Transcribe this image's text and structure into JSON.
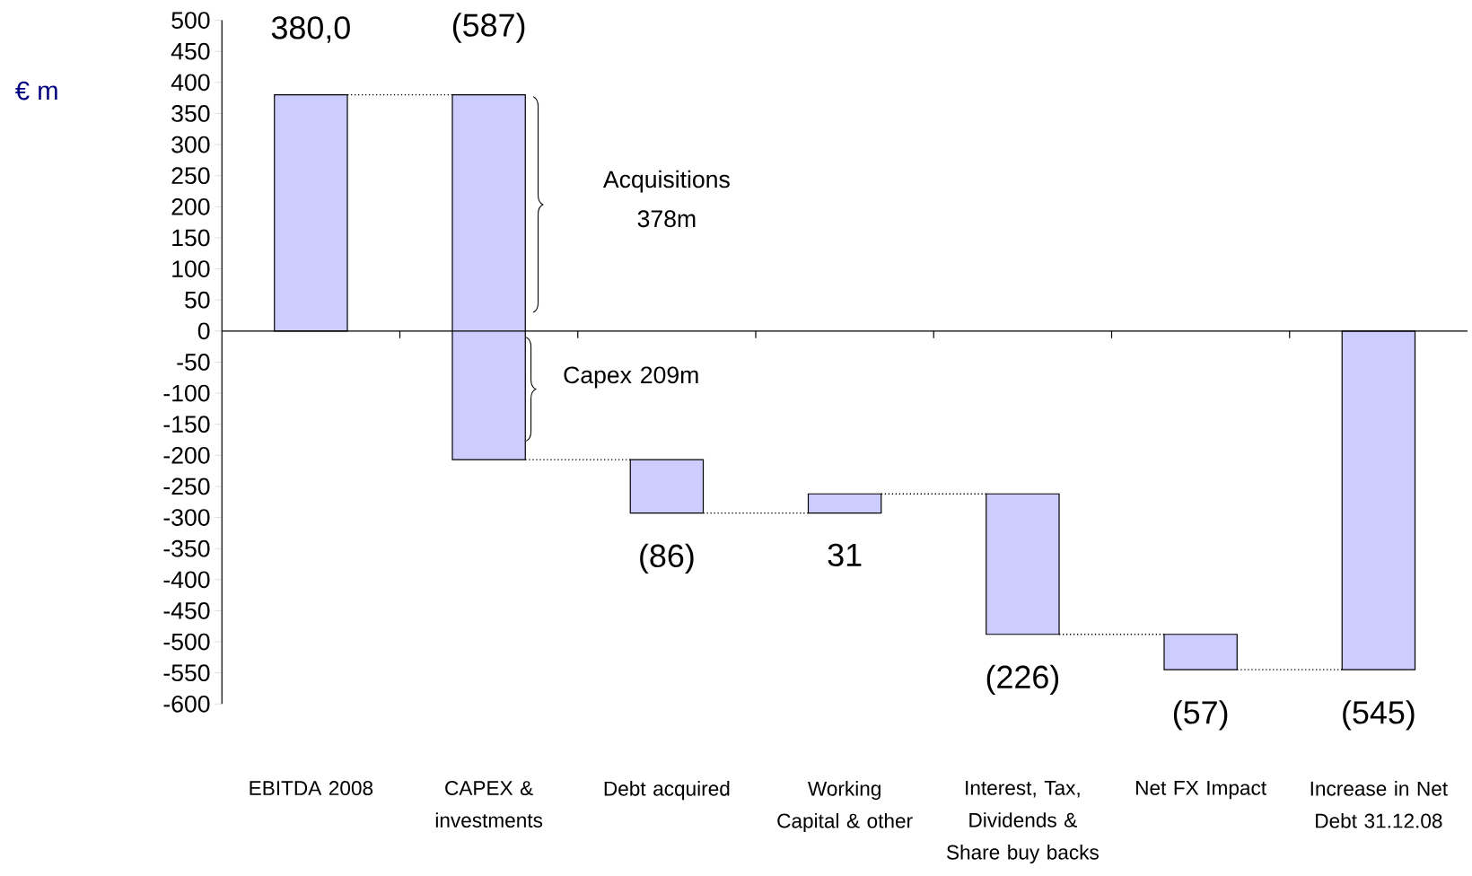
{
  "chart_data": {
    "type": "bar",
    "ylabel": "€ m",
    "categories": [
      "EBITDA 2008",
      "CAPEX & investments",
      "Debt acquired",
      "Working Capital & other",
      "Interest, Tax, Dividends & Share buy backs",
      "Net FX Impact",
      "Increase in Net Debt 31.12.08"
    ],
    "values": [
      380,
      -587,
      -86,
      31,
      -226,
      -57,
      -545
    ],
    "base": [
      0,
      380,
      -207,
      -293,
      -262,
      -488,
      0
    ],
    "value_labels": [
      "380,0",
      "(587)",
      "(86)",
      "31",
      "(226)",
      "(57)",
      "(545)"
    ],
    "color": "#ccccff",
    "ylim": [
      -600,
      500
    ],
    "yticks": [
      -600,
      -550,
      -500,
      -450,
      -400,
      -350,
      -300,
      -250,
      -200,
      -150,
      -100,
      -50,
      0,
      50,
      100,
      150,
      200,
      250,
      300,
      350,
      400,
      450,
      500
    ],
    "annotations": [
      "Acquisitions 378m",
      "Capex 209m"
    ]
  }
}
